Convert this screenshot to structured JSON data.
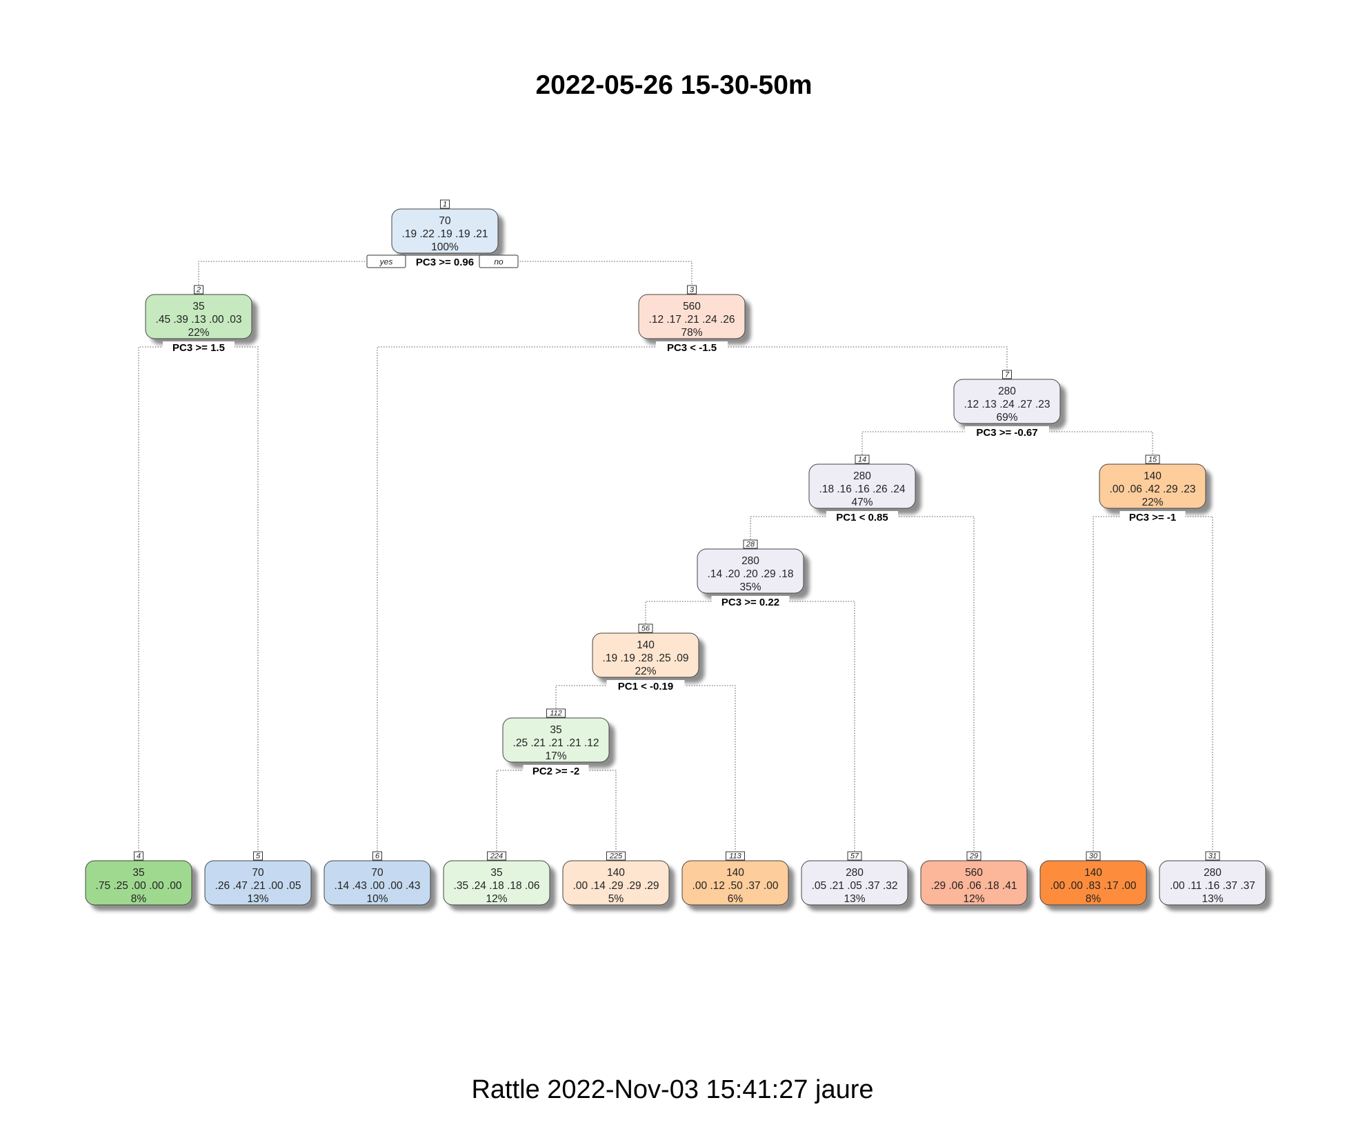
{
  "title": "2022-05-26 15-30-50m",
  "footer": "Rattle 2022-Nov-03 15:41:27 jaure",
  "branch_labels": {
    "yes": "yes",
    "no": "no"
  },
  "colors": {
    "green": [
      "#c6e9bf",
      "#e3f4df",
      "#9fd990"
    ],
    "blue": [
      "#dce9f6",
      "#c5daf0"
    ],
    "salmon": [
      "#fde0d3",
      "#fcb69a"
    ],
    "lavender": [
      "#eeedf6"
    ],
    "orange": [
      "#fde5cf",
      "#fdcd9b",
      "#fd8d3c"
    ]
  },
  "nodes": [
    {
      "id": "1",
      "count": "70",
      "probs": ".19 .22 .19 .19 .21",
      "pct": "100%",
      "color": "#dce9f6",
      "split": "PC3 >= 0.96"
    },
    {
      "id": "2",
      "count": "35",
      "probs": ".45 .39 .13 .00 .03",
      "pct": "22%",
      "color": "#c6e9bf",
      "split": "PC3 >= 1.5"
    },
    {
      "id": "3",
      "count": "560",
      "probs": ".12 .17 .21 .24 .26",
      "pct": "78%",
      "color": "#fde0d3",
      "split": "PC3 < -1.5"
    },
    {
      "id": "7",
      "count": "280",
      "probs": ".12 .13 .24 .27 .23",
      "pct": "69%",
      "color": "#eeedf6",
      "split": "PC3 >= -0.67"
    },
    {
      "id": "14",
      "count": "280",
      "probs": ".18 .16 .16 .26 .24",
      "pct": "47%",
      "color": "#eeedf6",
      "split": "PC1 < 0.85"
    },
    {
      "id": "15",
      "count": "140",
      "probs": ".00 .06 .42 .29 .23",
      "pct": "22%",
      "color": "#fdcd9b",
      "split": "PC3 >= -1"
    },
    {
      "id": "28",
      "count": "280",
      "probs": ".14 .20 .20 .29 .18",
      "pct": "35%",
      "color": "#eeedf6",
      "split": "PC3 >= 0.22"
    },
    {
      "id": "56",
      "count": "140",
      "probs": ".19 .19 .28 .25 .09",
      "pct": "22%",
      "color": "#fde5cf",
      "split": "PC1 < -0.19"
    },
    {
      "id": "112",
      "count": "35",
      "probs": ".25 .21 .21 .21 .12",
      "pct": "17%",
      "color": "#e3f4df",
      "split": "PC2 >= -2"
    },
    {
      "id": "4",
      "count": "35",
      "probs": ".75 .25 .00 .00 .00",
      "pct": "8%",
      "color": "#9fd990"
    },
    {
      "id": "5",
      "count": "70",
      "probs": ".26 .47 .21 .00 .05",
      "pct": "13%",
      "color": "#c5daf0"
    },
    {
      "id": "6",
      "count": "70",
      "probs": ".14 .43 .00 .00 .43",
      "pct": "10%",
      "color": "#c5daf0"
    },
    {
      "id": "224",
      "count": "35",
      "probs": ".35 .24 .18 .18 .06",
      "pct": "12%",
      "color": "#e3f4df"
    },
    {
      "id": "225",
      "count": "140",
      "probs": ".00 .14 .29 .29 .29",
      "pct": "5%",
      "color": "#fde5cf"
    },
    {
      "id": "113",
      "count": "140",
      "probs": ".00 .12 .50 .37 .00",
      "pct": "6%",
      "color": "#fdcd9b"
    },
    {
      "id": "57",
      "count": "280",
      "probs": ".05 .21 .05 .37 .32",
      "pct": "13%",
      "color": "#eeedf6"
    },
    {
      "id": "29",
      "count": "560",
      "probs": ".29 .06 .06 .18 .41",
      "pct": "12%",
      "color": "#fcb69a"
    },
    {
      "id": "30",
      "count": "140",
      "probs": ".00 .00 .83 .17 .00",
      "pct": "8%",
      "color": "#fd8d3c"
    },
    {
      "id": "31",
      "count": "280",
      "probs": ".00 .11 .16 .37 .37",
      "pct": "13%",
      "color": "#eeedf6"
    }
  ],
  "edges": [
    {
      "from": "1",
      "to": "2"
    },
    {
      "from": "1",
      "to": "3"
    },
    {
      "from": "2",
      "to": "4"
    },
    {
      "from": "2",
      "to": "5"
    },
    {
      "from": "3",
      "to": "6"
    },
    {
      "from": "3",
      "to": "7"
    },
    {
      "from": "7",
      "to": "14"
    },
    {
      "from": "7",
      "to": "15"
    },
    {
      "from": "14",
      "to": "28"
    },
    {
      "from": "14",
      "to": "29"
    },
    {
      "from": "15",
      "to": "30"
    },
    {
      "from": "15",
      "to": "31"
    },
    {
      "from": "28",
      "to": "56"
    },
    {
      "from": "28",
      "to": "57"
    },
    {
      "from": "56",
      "to": "112"
    },
    {
      "from": "56",
      "to": "113"
    },
    {
      "from": "112",
      "to": "224"
    },
    {
      "from": "112",
      "to": "225"
    }
  ]
}
